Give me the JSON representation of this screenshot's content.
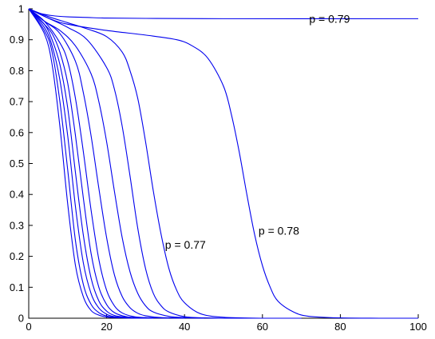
{
  "chart_data": {
    "type": "line",
    "title": "",
    "xlabel": "",
    "ylabel": "",
    "xlim": [
      0,
      100
    ],
    "ylim": [
      0,
      1
    ],
    "xticks": [
      "0",
      "20",
      "40",
      "60",
      "80",
      "100"
    ],
    "yticks": [
      "0",
      "0.1",
      "0.2",
      "0.3",
      "0.4",
      "0.5",
      "0.6",
      "0.7",
      "0.8",
      "0.9",
      "1"
    ],
    "grid": false,
    "legend": "none",
    "line_color": "#0000ee",
    "series": [
      {
        "x": [
          0,
          4,
          6,
          8,
          10,
          12,
          14,
          16,
          18,
          20,
          22,
          25,
          30
        ],
        "y": [
          1,
          0.92,
          0.82,
          0.62,
          0.37,
          0.17,
          0.07,
          0.025,
          0.01,
          0.004,
          0.002,
          0.001,
          0
        ]
      },
      {
        "x": [
          0,
          4,
          6,
          8,
          10,
          12,
          14,
          16,
          18,
          20,
          22,
          25,
          30
        ],
        "y": [
          1,
          0.93,
          0.86,
          0.7,
          0.48,
          0.25,
          0.11,
          0.045,
          0.018,
          0.007,
          0.003,
          0.001,
          0
        ]
      },
      {
        "x": [
          0,
          4,
          6,
          8,
          10,
          12,
          14,
          16,
          18,
          20,
          22,
          25,
          28,
          32
        ],
        "y": [
          1,
          0.94,
          0.88,
          0.77,
          0.59,
          0.36,
          0.18,
          0.08,
          0.033,
          0.013,
          0.005,
          0.002,
          0.001,
          0
        ]
      },
      {
        "x": [
          0,
          4,
          6,
          8,
          10,
          12,
          14,
          16,
          18,
          20,
          22,
          25,
          28,
          32
        ],
        "y": [
          1,
          0.95,
          0.9,
          0.82,
          0.68,
          0.47,
          0.27,
          0.13,
          0.056,
          0.023,
          0.009,
          0.003,
          0.001,
          0
        ]
      },
      {
        "x": [
          0,
          4,
          6,
          8,
          10,
          12,
          14,
          16,
          18,
          20,
          22,
          25,
          28,
          32,
          36
        ],
        "y": [
          1,
          0.95,
          0.92,
          0.86,
          0.76,
          0.59,
          0.39,
          0.21,
          0.1,
          0.044,
          0.018,
          0.005,
          0.002,
          0.001,
          0
        ]
      },
      {
        "x": [
          0,
          4,
          8,
          10,
          12,
          14,
          16,
          18,
          20,
          22,
          24,
          27,
          30,
          35,
          40
        ],
        "y": [
          1,
          0.96,
          0.89,
          0.83,
          0.71,
          0.54,
          0.35,
          0.19,
          0.09,
          0.04,
          0.017,
          0.005,
          0.002,
          0.001,
          0
        ]
      },
      {
        "x": [
          0,
          4,
          8,
          12,
          14,
          16,
          18,
          20,
          22,
          24,
          26,
          28,
          30,
          34,
          40,
          45
        ],
        "y": [
          1,
          0.96,
          0.92,
          0.83,
          0.73,
          0.59,
          0.42,
          0.26,
          0.14,
          0.07,
          0.034,
          0.016,
          0.008,
          0.002,
          0.001,
          0
        ]
      },
      {
        "x": [
          0,
          4,
          8,
          12,
          16,
          18,
          20,
          22,
          24,
          26,
          28,
          30,
          32,
          36,
          40,
          45,
          50
        ],
        "y": [
          1,
          0.96,
          0.93,
          0.88,
          0.79,
          0.7,
          0.57,
          0.41,
          0.26,
          0.15,
          0.08,
          0.04,
          0.02,
          0.006,
          0.002,
          0.001,
          0
        ]
      },
      {
        "x": [
          0,
          5,
          10,
          15,
          20,
          22,
          24,
          26,
          28,
          30,
          32,
          34,
          36,
          40,
          45,
          50,
          60
        ],
        "y": [
          1,
          0.97,
          0.94,
          0.9,
          0.81,
          0.74,
          0.62,
          0.46,
          0.29,
          0.16,
          0.08,
          0.04,
          0.02,
          0.005,
          0.001,
          0,
          0
        ]
      },
      {
        "x": [
          0,
          5,
          10,
          15,
          20,
          24,
          26,
          28,
          30,
          32,
          34,
          36,
          38,
          40,
          44,
          50,
          60,
          70
        ],
        "y": [
          1,
          0.975,
          0.955,
          0.935,
          0.91,
          0.86,
          0.8,
          0.71,
          0.57,
          0.41,
          0.27,
          0.16,
          0.09,
          0.05,
          0.015,
          0.003,
          0,
          0
        ]
      },
      {
        "x": [
          0,
          5,
          10,
          20,
          30,
          38,
          42,
          46,
          50,
          52,
          54,
          56,
          58,
          60,
          62,
          64,
          68,
          72,
          80,
          90,
          100
        ],
        "y": [
          1,
          0.97,
          0.95,
          0.93,
          0.915,
          0.9,
          0.88,
          0.84,
          0.75,
          0.66,
          0.54,
          0.4,
          0.27,
          0.17,
          0.1,
          0.055,
          0.02,
          0.006,
          0.001,
          0,
          0
        ]
      },
      {
        "x": [
          0,
          3,
          6,
          10,
          15,
          20,
          30,
          50,
          100
        ],
        "y": [
          1,
          0.985,
          0.978,
          0.974,
          0.972,
          0.97,
          0.969,
          0.968,
          0.968
        ]
      }
    ],
    "annotations": [
      {
        "text": "p = 0.79",
        "x": 72,
        "y": 0.955
      },
      {
        "text": "p = 0.78",
        "x": 59,
        "y": 0.27
      },
      {
        "text": "p = 0.77",
        "x": 35,
        "y": 0.225
      }
    ]
  }
}
